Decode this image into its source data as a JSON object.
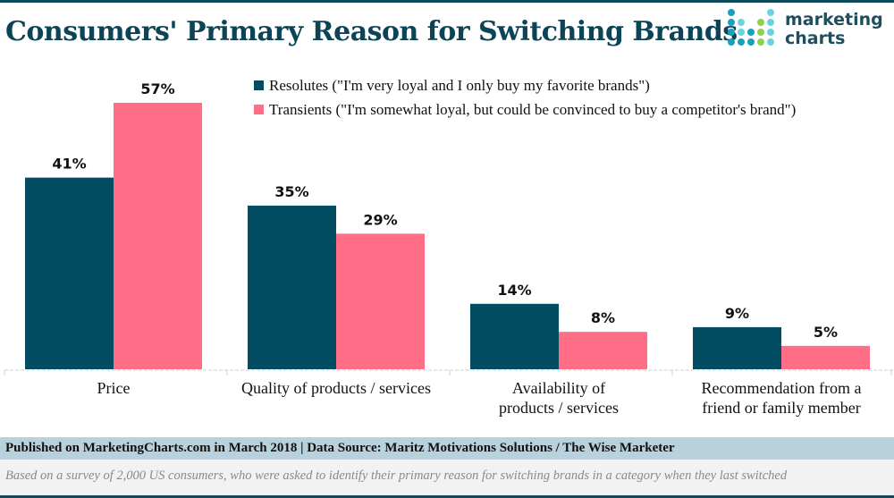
{
  "header": {
    "title": "Consumers' Primary Reason for Switching Brands",
    "logo_line1": "marketing",
    "logo_line2": "charts"
  },
  "colors": {
    "resolutes": "#034d63",
    "transients": "#ff6d87",
    "title": "#0b4457"
  },
  "chart_data": {
    "type": "bar",
    "title": "Consumers' Primary Reason for Switching Brands",
    "xlabel": "",
    "ylabel": "",
    "ylim": [
      0,
      60
    ],
    "grid": false,
    "legend_position": "top-right",
    "categories": [
      [
        "Price"
      ],
      [
        "Quality of products / services"
      ],
      [
        "Availability of",
        "products / services"
      ],
      [
        "Recommendation from a",
        "friend or family member"
      ]
    ],
    "series": [
      {
        "name": "Resolutes (\"I'm very loyal and I only buy my favorite brands\")",
        "key": "resolutes",
        "values": [
          41,
          35,
          14,
          9
        ],
        "labels": [
          "41%",
          "35%",
          "14%",
          "9%"
        ]
      },
      {
        "name": "Transients (\"I'm somewhat loyal, but could be convinced to buy a competitor's brand\")",
        "key": "transients",
        "values": [
          57,
          29,
          8,
          5
        ],
        "labels": [
          "57%",
          "29%",
          "8%",
          "5%"
        ]
      }
    ]
  },
  "footer": {
    "source": "Published on MarketingCharts.com in March 2018 | Data Source: Maritz Motivations Solutions / The Wise Marketer",
    "note": "Based on a survey of 2,000 US consumers, who were asked to identify their primary reason for switching brands in a category when they last switched"
  }
}
